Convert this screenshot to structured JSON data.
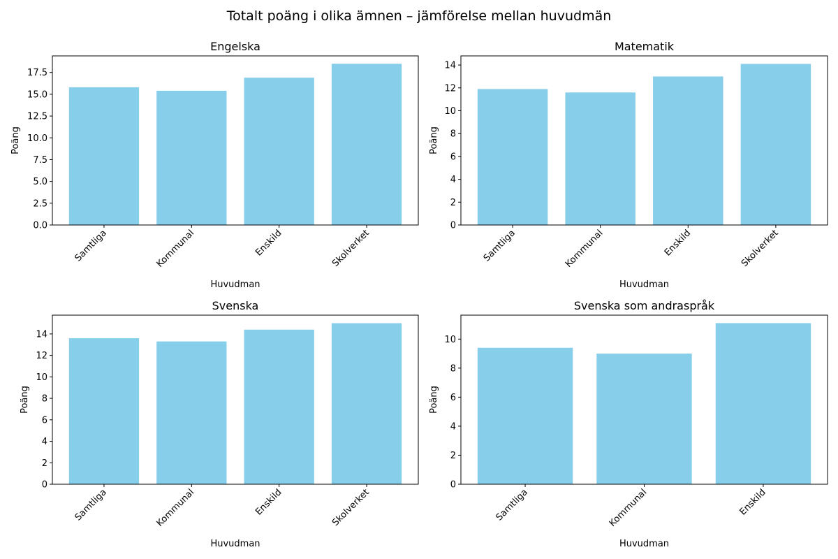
{
  "suptitle": "Totalt poäng i olika ämnen – jämförelse mellan huvudmän",
  "chart_data": [
    {
      "type": "bar",
      "title": "Engelska",
      "xlabel": "Huvudman",
      "ylabel": "Poäng",
      "categories": [
        "Samtliga",
        "Kommunal",
        "Enskild",
        "Skolverket"
      ],
      "values": [
        15.8,
        15.4,
        16.9,
        18.5
      ],
      "ylim": [
        0,
        19.4
      ],
      "yticks": [
        0.0,
        2.5,
        5.0,
        7.5,
        10.0,
        12.5,
        15.0,
        17.5
      ],
      "ytick_decimals": 1,
      "grid": false,
      "bar_color": "#87CEEB"
    },
    {
      "type": "bar",
      "title": "Matematik",
      "xlabel": "Huvudman",
      "ylabel": "Poäng",
      "categories": [
        "Samtliga",
        "Kommunal",
        "Enskild",
        "Skolverket"
      ],
      "values": [
        11.9,
        11.6,
        13.0,
        14.1
      ],
      "ylim": [
        0,
        14.8
      ],
      "yticks": [
        0,
        2,
        4,
        6,
        8,
        10,
        12,
        14
      ],
      "ytick_decimals": 0,
      "grid": false,
      "bar_color": "#87CEEB"
    },
    {
      "type": "bar",
      "title": "Svenska",
      "xlabel": "Huvudman",
      "ylabel": "Poäng",
      "categories": [
        "Samtliga",
        "Kommunal",
        "Enskild",
        "Skolverket"
      ],
      "values": [
        13.6,
        13.3,
        14.4,
        15.0
      ],
      "ylim": [
        0,
        15.75
      ],
      "yticks": [
        0,
        2,
        4,
        6,
        8,
        10,
        12,
        14
      ],
      "ytick_decimals": 0,
      "grid": false,
      "bar_color": "#87CEEB"
    },
    {
      "type": "bar",
      "title": "Svenska som andraspråk",
      "xlabel": "Huvudman",
      "ylabel": "Poäng",
      "categories": [
        "Samtliga",
        "Kommunal",
        "Enskild"
      ],
      "values": [
        9.4,
        9.0,
        11.1
      ],
      "ylim": [
        0,
        11.65
      ],
      "yticks": [
        0,
        2,
        4,
        6,
        8,
        10
      ],
      "ytick_decimals": 0,
      "grid": false,
      "bar_color": "#87CEEB"
    }
  ]
}
